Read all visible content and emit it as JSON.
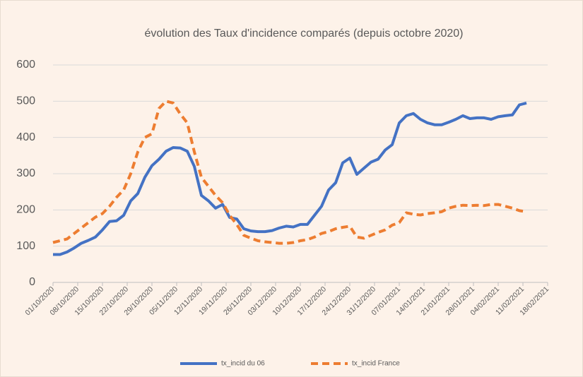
{
  "chart_data": {
    "type": "line",
    "title": "évolution des Taux d'incidence comparés (depuis octobre 2020)",
    "x": [
      "01/10/2020",
      "03/10/2020",
      "05/10/2020",
      "07/10/2020",
      "09/10/2020",
      "11/10/2020",
      "13/10/2020",
      "15/10/2020",
      "17/10/2020",
      "19/10/2020",
      "21/10/2020",
      "23/10/2020",
      "25/10/2020",
      "27/10/2020",
      "29/10/2020",
      "31/10/2020",
      "02/11/2020",
      "04/11/2020",
      "06/11/2020",
      "08/11/2020",
      "10/11/2020",
      "12/11/2020",
      "14/11/2020",
      "16/11/2020",
      "18/11/2020",
      "20/11/2020",
      "22/11/2020",
      "24/11/2020",
      "26/11/2020",
      "28/11/2020",
      "30/11/2020",
      "02/12/2020",
      "04/12/2020",
      "06/12/2020",
      "08/12/2020",
      "10/12/2020",
      "12/12/2020",
      "14/12/2020",
      "16/12/2020",
      "18/12/2020",
      "20/12/2020",
      "22/12/2020",
      "24/12/2020",
      "26/12/2020",
      "28/12/2020",
      "30/12/2020",
      "01/01/2021",
      "03/01/2021",
      "05/01/2021",
      "07/01/2021",
      "09/01/2021",
      "11/01/2021",
      "13/01/2021",
      "15/01/2021",
      "17/01/2021",
      "19/01/2021",
      "21/01/2021",
      "23/01/2021",
      "25/01/2021",
      "27/01/2021",
      "29/01/2021",
      "31/01/2021",
      "02/02/2021",
      "04/02/2021",
      "06/02/2021",
      "08/02/2021",
      "10/02/2021",
      "12/02/2021"
    ],
    "series": [
      {
        "name": "tx_incid du 06",
        "color": "#4472c4",
        "dashed": false,
        "values": [
          77,
          77,
          84,
          95,
          108,
          116,
          125,
          145,
          168,
          170,
          185,
          225,
          245,
          290,
          322,
          340,
          362,
          372,
          371,
          362,
          320,
          240,
          225,
          205,
          215,
          179,
          175,
          148,
          142,
          140,
          140,
          143,
          150,
          155,
          153,
          160,
          160,
          185,
          210,
          255,
          275,
          330,
          343,
          298,
          315,
          332,
          340,
          365,
          380,
          440,
          460,
          466,
          450,
          440,
          435,
          435,
          442,
          450,
          460,
          452,
          454,
          454,
          450,
          457,
          460,
          462,
          490,
          495
        ]
      },
      {
        "name": "tx_incid France",
        "color": "#ed7d31",
        "dashed": true,
        "values": [
          110,
          115,
          120,
          135,
          150,
          165,
          180,
          190,
          210,
          235,
          255,
          300,
          360,
          400,
          410,
          480,
          500,
          495,
          465,
          440,
          360,
          290,
          265,
          240,
          220,
          185,
          160,
          130,
          122,
          115,
          112,
          110,
          108,
          108,
          110,
          115,
          118,
          125,
          135,
          140,
          148,
          152,
          155,
          125,
          122,
          130,
          138,
          145,
          158,
          165,
          192,
          188,
          186,
          190,
          192,
          195,
          205,
          210,
          213,
          212,
          213,
          212,
          215,
          215,
          210,
          205,
          198,
          195
        ]
      }
    ],
    "xlim": [
      "01/10/2020",
      "18/02/2021"
    ],
    "xticks": [
      "01/10/2020",
      "08/10/2020",
      "15/10/2020",
      "22/10/2020",
      "29/10/2020",
      "05/11/2020",
      "12/11/2020",
      "19/11/2020",
      "26/11/2020",
      "03/12/2020",
      "10/12/2020",
      "17/12/2020",
      "24/12/2020",
      "31/12/2020",
      "07/01/2021",
      "14/01/2021",
      "21/01/2021",
      "28/01/2021",
      "04/02/2021",
      "11/02/2021",
      "18/02/2021"
    ],
    "ylim": [
      0,
      600
    ],
    "yticks": [
      0,
      100,
      200,
      300,
      400,
      500,
      600
    ],
    "grid": true,
    "legend": "bottom"
  }
}
